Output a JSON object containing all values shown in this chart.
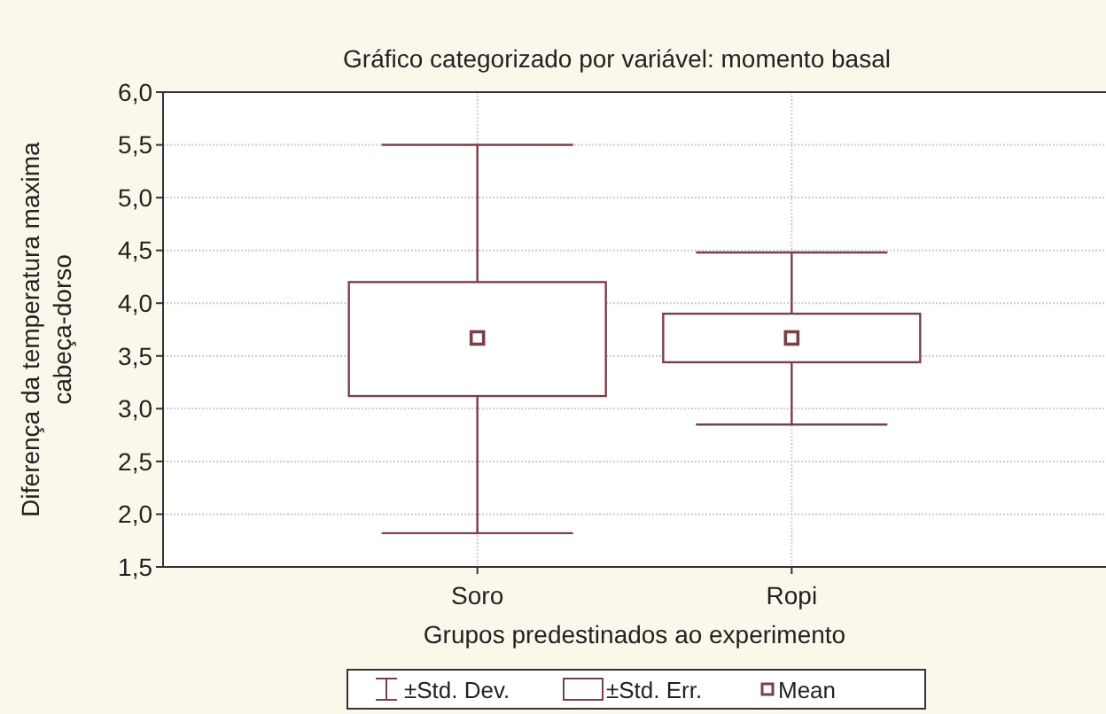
{
  "chart_data": {
    "type": "box",
    "title": "Gráfico categorizado por variável: momento basal",
    "xlabel": "Grupos predestinados ao experimento",
    "ylabel": "Diferença da temperatura maxima\ncabeça-dorso",
    "categories": [
      "Soro",
      "Ropi"
    ],
    "boxes": [
      {
        "low": 1.82,
        "q1": 3.12,
        "q3": 4.2,
        "high": 5.5,
        "mean": 3.67
      },
      {
        "low": 2.85,
        "q1": 3.44,
        "q3": 3.9,
        "high": 4.48,
        "mean": 3.67
      }
    ],
    "color": "#7a4048",
    "ylim": [
      1.5,
      6
    ],
    "yticks": [
      {
        "value": 1.5,
        "label": "1,5"
      },
      {
        "value": 2,
        "label": "2,0"
      },
      {
        "value": 2.5,
        "label": "2,5"
      },
      {
        "value": 3,
        "label": "3,0"
      },
      {
        "value": 3.5,
        "label": "3,5"
      },
      {
        "value": 4,
        "label": "4,0"
      },
      {
        "value": 4.5,
        "label": "4,5"
      },
      {
        "value": 5,
        "label": "5,0"
      },
      {
        "value": 5.5,
        "label": "5,5"
      },
      {
        "value": 6,
        "label": "6,0"
      }
    ],
    "grid": true,
    "annotations": [
      "±Std. Dev.",
      "±Std. Err.",
      "Mean"
    ]
  }
}
